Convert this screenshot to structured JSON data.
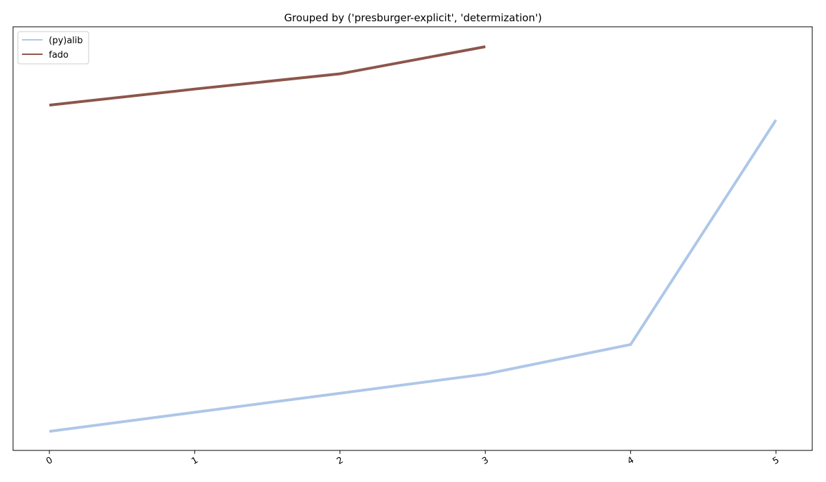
{
  "chart_data": {
    "type": "line",
    "title": "Grouped by ('presburger-explicit', 'determization')",
    "xlabel": "",
    "ylabel": "",
    "x": [
      0,
      1,
      2,
      3,
      4,
      5
    ],
    "xticks": [
      "0",
      "1",
      "2",
      "3",
      "4",
      "5"
    ],
    "xlim": [
      -0.25,
      5.25
    ],
    "ylim": [
      0,
      100
    ],
    "y_ticks_shown": false,
    "grid": false,
    "legend_position": "upper-left",
    "series": [
      {
        "name": "(py)alib",
        "color": "#aec7e8",
        "x": [
          0,
          1,
          2,
          3,
          4,
          5
        ],
        "values": [
          4.5,
          9.0,
          13.5,
          18.0,
          25.0,
          78.0
        ]
      },
      {
        "name": "fado",
        "color": "#8c564b",
        "x": [
          0,
          1,
          2,
          3
        ],
        "values": [
          81.5,
          85.3,
          88.9,
          95.3
        ]
      }
    ]
  }
}
